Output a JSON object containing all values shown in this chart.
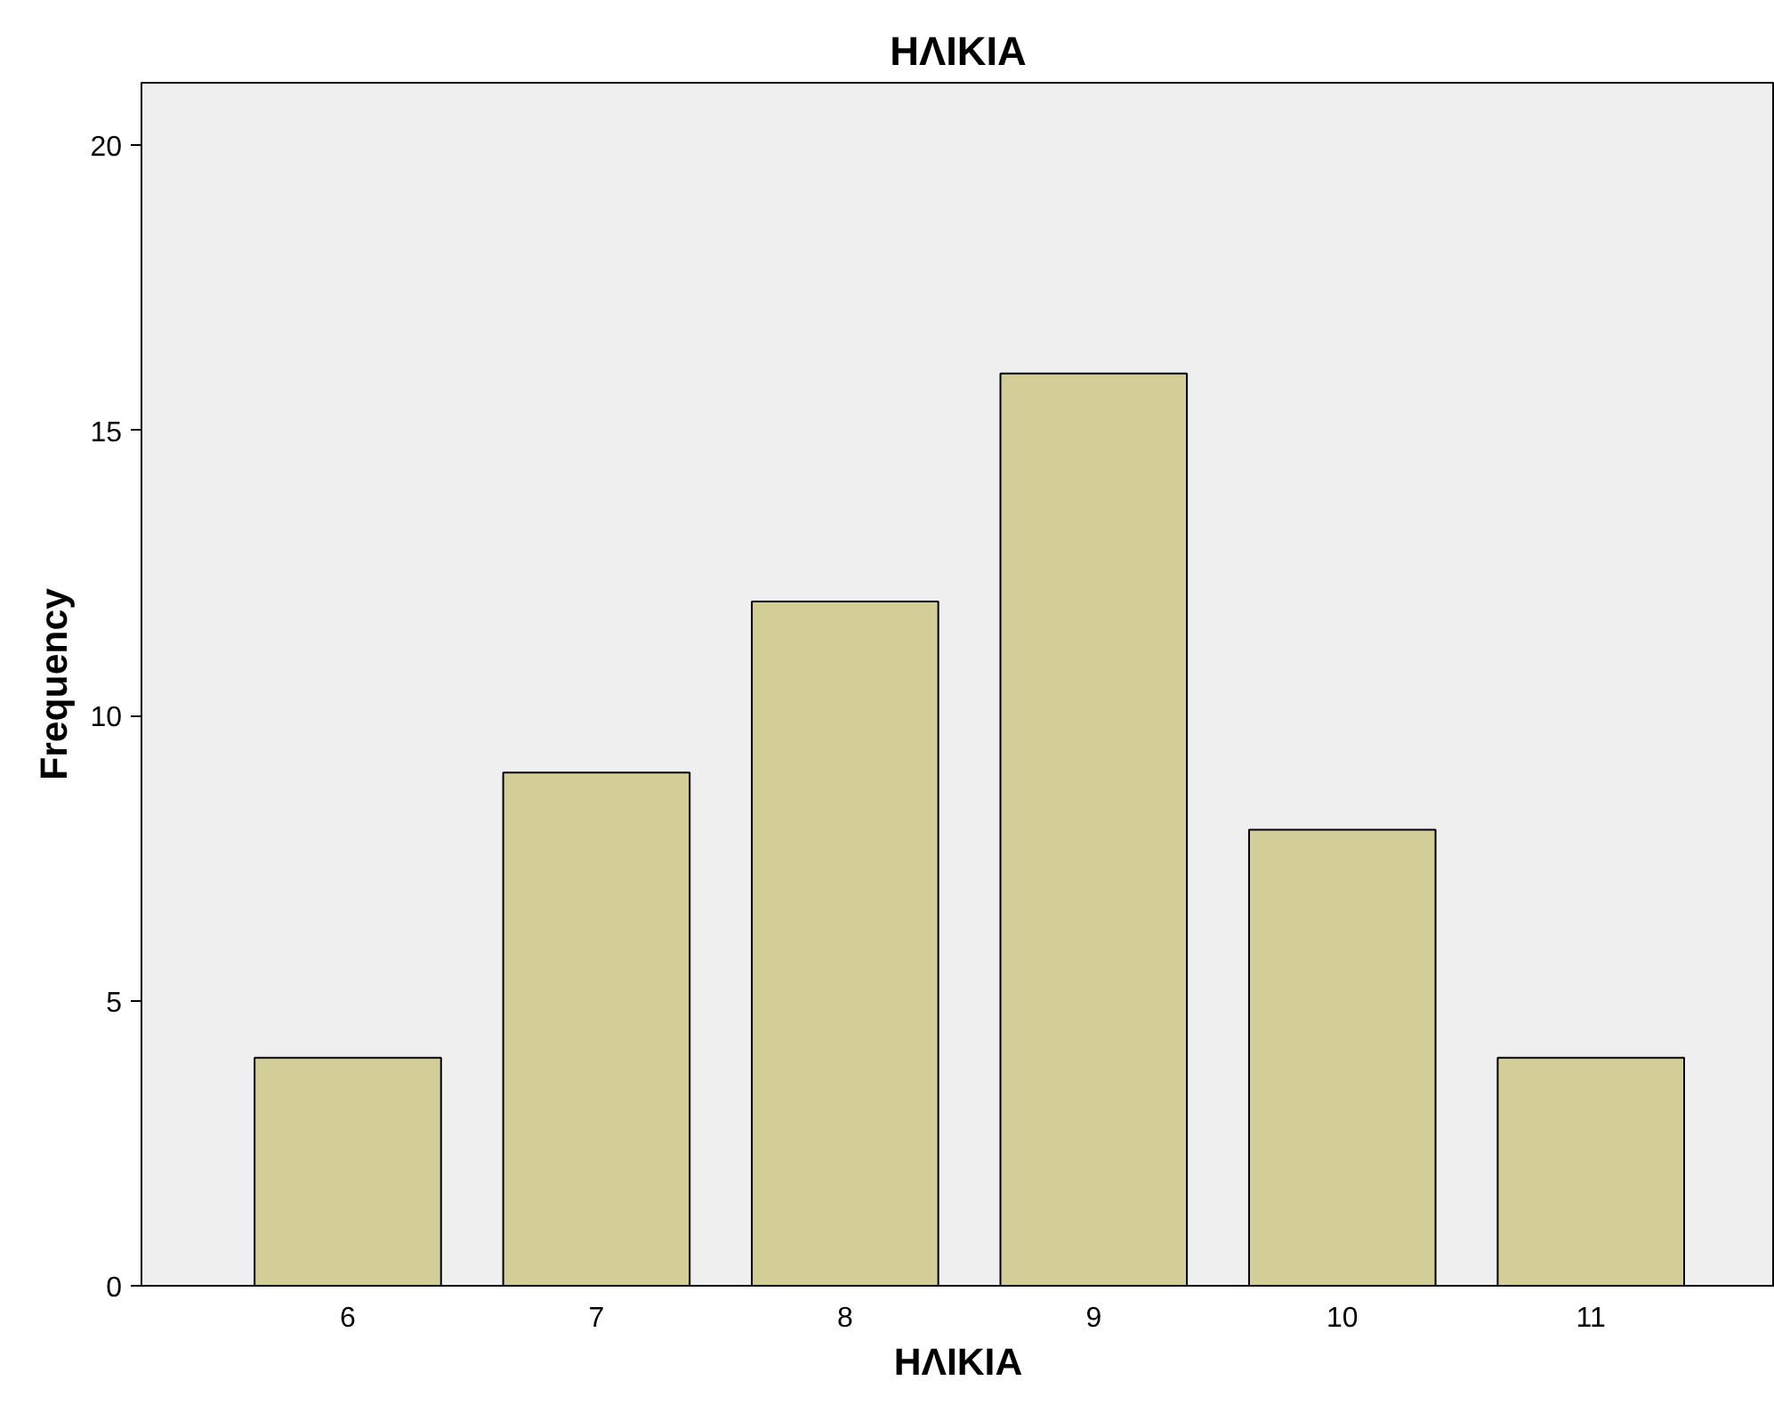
{
  "chart_data": {
    "type": "bar",
    "title": "ΗΛΙΚΙΑ",
    "xlabel": "ΗΛΙΚΙΑ",
    "ylabel": "Frequency",
    "categories": [
      "6",
      "7",
      "8",
      "9",
      "10",
      "11"
    ],
    "series": [
      {
        "color": "#d3ce97",
        "values": [
          4,
          9,
          12,
          16,
          8,
          4
        ]
      }
    ],
    "ylim": [
      0,
      21.1
    ],
    "yticks": [
      0,
      5,
      10,
      15,
      20
    ]
  }
}
